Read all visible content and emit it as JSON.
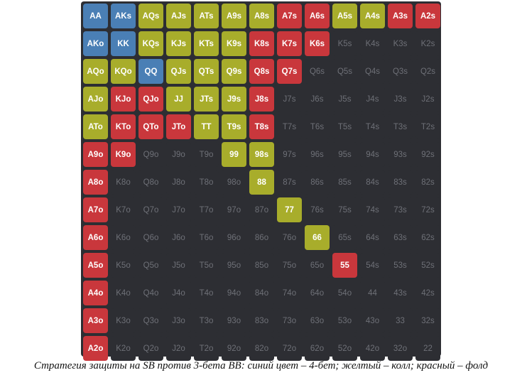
{
  "colors": {
    "b": "#4a7fb5",
    "y": "#a8ad2b",
    "r": "#c9373c",
    "n": "#2d2e33"
  },
  "matrix": {
    "rows": [
      [
        [
          "AA",
          "b"
        ],
        [
          "AKs",
          "b"
        ],
        [
          "AQs",
          "y"
        ],
        [
          "AJs",
          "y"
        ],
        [
          "ATs",
          "y"
        ],
        [
          "A9s",
          "y"
        ],
        [
          "A8s",
          "y"
        ],
        [
          "A7s",
          "r"
        ],
        [
          "A6s",
          "r"
        ],
        [
          "A5s",
          "y"
        ],
        [
          "A4s",
          "y"
        ],
        [
          "A3s",
          "r"
        ],
        [
          "A2s",
          "r"
        ]
      ],
      [
        [
          "AKo",
          "b"
        ],
        [
          "KK",
          "b"
        ],
        [
          "KQs",
          "y"
        ],
        [
          "KJs",
          "y"
        ],
        [
          "KTs",
          "y"
        ],
        [
          "K9s",
          "y"
        ],
        [
          "K8s",
          "r"
        ],
        [
          "K7s",
          "r"
        ],
        [
          "K6s",
          "r"
        ],
        [
          "K5s",
          "n"
        ],
        [
          "K4s",
          "n"
        ],
        [
          "K3s",
          "n"
        ],
        [
          "K2s",
          "n"
        ]
      ],
      [
        [
          "AQo",
          "y"
        ],
        [
          "KQo",
          "y"
        ],
        [
          "QQ",
          "b"
        ],
        [
          "QJs",
          "y"
        ],
        [
          "QTs",
          "y"
        ],
        [
          "Q9s",
          "y"
        ],
        [
          "Q8s",
          "r"
        ],
        [
          "Q7s",
          "r"
        ],
        [
          "Q6s",
          "n"
        ],
        [
          "Q5s",
          "n"
        ],
        [
          "Q4s",
          "n"
        ],
        [
          "Q3s",
          "n"
        ],
        [
          "Q2s",
          "n"
        ]
      ],
      [
        [
          "AJo",
          "y"
        ],
        [
          "KJo",
          "r"
        ],
        [
          "QJo",
          "r"
        ],
        [
          "JJ",
          "y"
        ],
        [
          "JTs",
          "y"
        ],
        [
          "J9s",
          "y"
        ],
        [
          "J8s",
          "r"
        ],
        [
          "J7s",
          "n"
        ],
        [
          "J6s",
          "n"
        ],
        [
          "J5s",
          "n"
        ],
        [
          "J4s",
          "n"
        ],
        [
          "J3s",
          "n"
        ],
        [
          "J2s",
          "n"
        ]
      ],
      [
        [
          "ATo",
          "y"
        ],
        [
          "KTo",
          "r"
        ],
        [
          "QTo",
          "r"
        ],
        [
          "JTo",
          "r"
        ],
        [
          "TT",
          "y"
        ],
        [
          "T9s",
          "y"
        ],
        [
          "T8s",
          "r"
        ],
        [
          "T7s",
          "n"
        ],
        [
          "T6s",
          "n"
        ],
        [
          "T5s",
          "n"
        ],
        [
          "T4s",
          "n"
        ],
        [
          "T3s",
          "n"
        ],
        [
          "T2s",
          "n"
        ]
      ],
      [
        [
          "A9o",
          "r"
        ],
        [
          "K9o",
          "r"
        ],
        [
          "Q9o",
          "n"
        ],
        [
          "J9o",
          "n"
        ],
        [
          "T9o",
          "n"
        ],
        [
          "99",
          "y"
        ],
        [
          "98s",
          "y"
        ],
        [
          "97s",
          "n"
        ],
        [
          "96s",
          "n"
        ],
        [
          "95s",
          "n"
        ],
        [
          "94s",
          "n"
        ],
        [
          "93s",
          "n"
        ],
        [
          "92s",
          "n"
        ]
      ],
      [
        [
          "A8o",
          "r"
        ],
        [
          "K8o",
          "n"
        ],
        [
          "Q8o",
          "n"
        ],
        [
          "J8o",
          "n"
        ],
        [
          "T8o",
          "n"
        ],
        [
          "98o",
          "n"
        ],
        [
          "88",
          "y"
        ],
        [
          "87s",
          "n"
        ],
        [
          "86s",
          "n"
        ],
        [
          "85s",
          "n"
        ],
        [
          "84s",
          "n"
        ],
        [
          "83s",
          "n"
        ],
        [
          "82s",
          "n"
        ]
      ],
      [
        [
          "A7o",
          "r"
        ],
        [
          "K7o",
          "n"
        ],
        [
          "Q7o",
          "n"
        ],
        [
          "J7o",
          "n"
        ],
        [
          "T7o",
          "n"
        ],
        [
          "97o",
          "n"
        ],
        [
          "87o",
          "n"
        ],
        [
          "77",
          "y"
        ],
        [
          "76s",
          "n"
        ],
        [
          "75s",
          "n"
        ],
        [
          "74s",
          "n"
        ],
        [
          "73s",
          "n"
        ],
        [
          "72s",
          "n"
        ]
      ],
      [
        [
          "A6o",
          "r"
        ],
        [
          "K6o",
          "n"
        ],
        [
          "Q6o",
          "n"
        ],
        [
          "J6o",
          "n"
        ],
        [
          "T6o",
          "n"
        ],
        [
          "96o",
          "n"
        ],
        [
          "86o",
          "n"
        ],
        [
          "76o",
          "n"
        ],
        [
          "66",
          "y"
        ],
        [
          "65s",
          "n"
        ],
        [
          "64s",
          "n"
        ],
        [
          "63s",
          "n"
        ],
        [
          "62s",
          "n"
        ]
      ],
      [
        [
          "A5o",
          "r"
        ],
        [
          "K5o",
          "n"
        ],
        [
          "Q5o",
          "n"
        ],
        [
          "J5o",
          "n"
        ],
        [
          "T5o",
          "n"
        ],
        [
          "95o",
          "n"
        ],
        [
          "85o",
          "n"
        ],
        [
          "75o",
          "n"
        ],
        [
          "65o",
          "n"
        ],
        [
          "55",
          "r"
        ],
        [
          "54s",
          "n"
        ],
        [
          "53s",
          "n"
        ],
        [
          "52s",
          "n"
        ]
      ],
      [
        [
          "A4o",
          "r"
        ],
        [
          "K4o",
          "n"
        ],
        [
          "Q4o",
          "n"
        ],
        [
          "J4o",
          "n"
        ],
        [
          "T4o",
          "n"
        ],
        [
          "94o",
          "n"
        ],
        [
          "84o",
          "n"
        ],
        [
          "74o",
          "n"
        ],
        [
          "64o",
          "n"
        ],
        [
          "54o",
          "n"
        ],
        [
          "44",
          "n"
        ],
        [
          "43s",
          "n"
        ],
        [
          "42s",
          "n"
        ]
      ],
      [
        [
          "A3o",
          "r"
        ],
        [
          "K3o",
          "n"
        ],
        [
          "Q3o",
          "n"
        ],
        [
          "J3o",
          "n"
        ],
        [
          "T3o",
          "n"
        ],
        [
          "93o",
          "n"
        ],
        [
          "83o",
          "n"
        ],
        [
          "73o",
          "n"
        ],
        [
          "63o",
          "n"
        ],
        [
          "53o",
          "n"
        ],
        [
          "43o",
          "n"
        ],
        [
          "33",
          "n"
        ],
        [
          "32s",
          "n"
        ]
      ],
      [
        [
          "A2o",
          "r"
        ],
        [
          "K2o",
          "n"
        ],
        [
          "Q2o",
          "n"
        ],
        [
          "J2o",
          "n"
        ],
        [
          "T2o",
          "n"
        ],
        [
          "92o",
          "n"
        ],
        [
          "82o",
          "n"
        ],
        [
          "72o",
          "n"
        ],
        [
          "62o",
          "n"
        ],
        [
          "52o",
          "n"
        ],
        [
          "42o",
          "n"
        ],
        [
          "32o",
          "n"
        ],
        [
          "22",
          "n"
        ]
      ]
    ]
  },
  "caption": "Стратегия защиты на SB против 3-бета BB: синий цвет – 4-бет; желтый – колл; красный – фолд"
}
